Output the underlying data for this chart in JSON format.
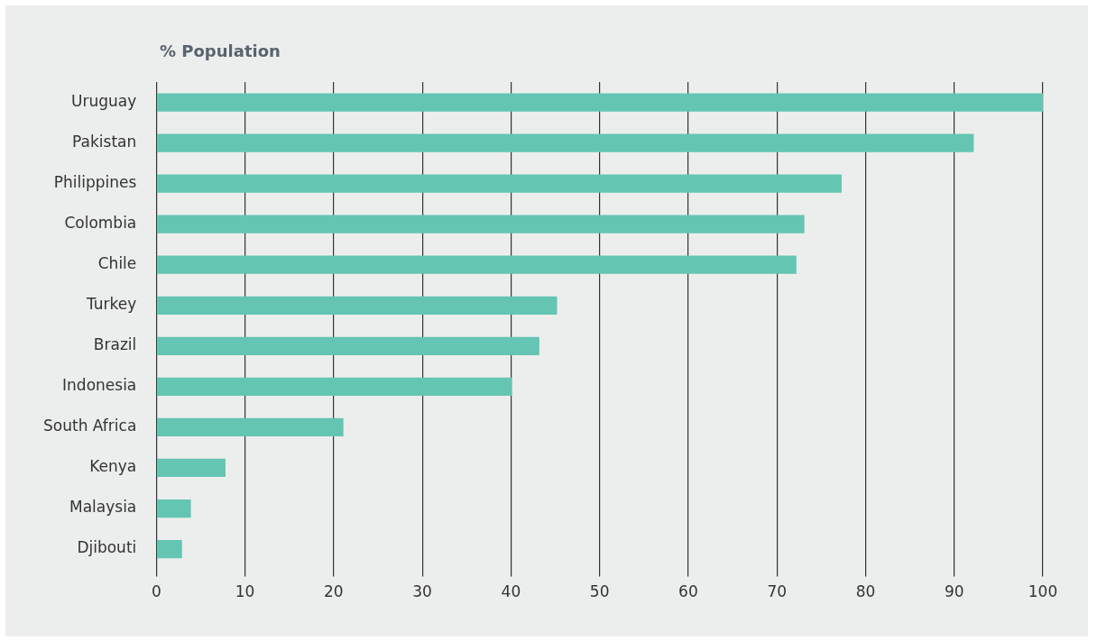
{
  "chart_data": {
    "type": "bar",
    "orientation": "horizontal",
    "title": "% Population",
    "categories": [
      "Uruguay",
      "Pakistan",
      "Philippines",
      "Colombia",
      "Chile",
      "Turkey",
      "Brazil",
      "Indonesia",
      "South Africa",
      "Kenya",
      "Malaysia",
      "Djibouti"
    ],
    "values": [
      100,
      92.2,
      77.3,
      73.1,
      72.2,
      45.2,
      43.2,
      40.1,
      21.1,
      7.8,
      3.9,
      2.9
    ],
    "color": "#64c5b3",
    "xlim": [
      0,
      100
    ],
    "xticks": [
      0,
      10,
      20,
      30,
      40,
      50,
      60,
      70,
      80,
      90,
      100
    ],
    "grid": "x",
    "legend": false
  }
}
